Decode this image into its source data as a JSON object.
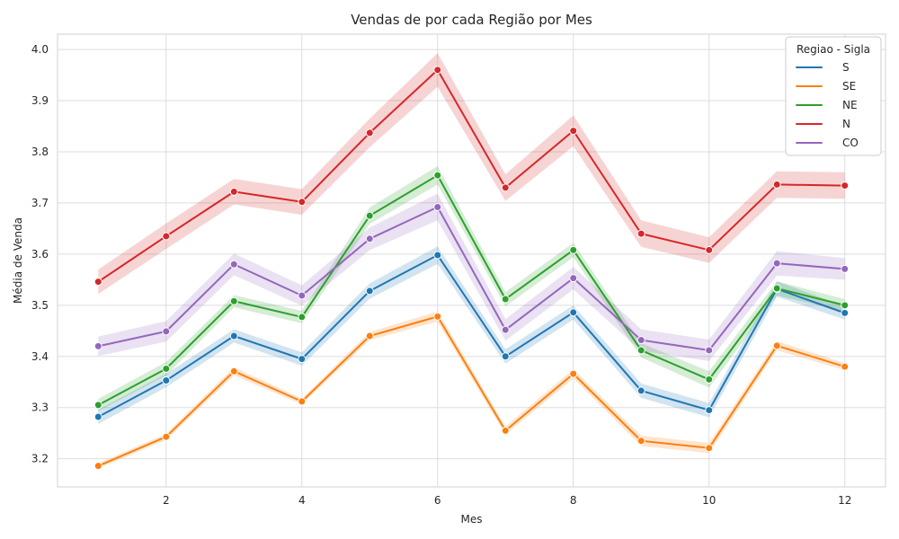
{
  "chart_data": {
    "type": "line",
    "title": "Vendas de por cada Região por Mes",
    "xlabel": "Mes",
    "ylabel": "Média de Venda",
    "x": [
      1,
      2,
      3,
      4,
      5,
      6,
      7,
      8,
      9,
      10,
      11,
      12
    ],
    "xticks": [
      2,
      4,
      6,
      8,
      10,
      12
    ],
    "xtick_labels": [
      "2",
      "4",
      "6",
      "8",
      "10",
      "12"
    ],
    "yticks": [
      3.2,
      3.3,
      3.4,
      3.5,
      3.6,
      3.7,
      3.8,
      3.9,
      4.0
    ],
    "ytick_labels": [
      "3.2",
      "3.3",
      "3.4",
      "3.5",
      "3.6",
      "3.7",
      "3.8",
      "3.9",
      "4.0"
    ],
    "xlim": [
      0.4,
      12.6
    ],
    "ylim": [
      3.145,
      4.03
    ],
    "grid": true,
    "legend": {
      "title": "Regiao - Sigla",
      "placement": "top-right"
    },
    "series": [
      {
        "name": "S",
        "color": "#1f77b4",
        "values": [
          3.282,
          3.353,
          3.44,
          3.395,
          3.528,
          3.598,
          3.4,
          3.486,
          3.333,
          3.295,
          3.532,
          3.485
        ],
        "ci_half": [
          0.014,
          0.013,
          0.013,
          0.013,
          0.015,
          0.017,
          0.014,
          0.014,
          0.014,
          0.014,
          0.015,
          0.013
        ]
      },
      {
        "name": "SE",
        "color": "#ff7f0e",
        "values": [
          3.186,
          3.243,
          3.371,
          3.312,
          3.44,
          3.478,
          3.255,
          3.366,
          3.235,
          3.221,
          3.421,
          3.38
        ],
        "ci_half": [
          0.005,
          0.006,
          0.008,
          0.006,
          0.008,
          0.01,
          0.008,
          0.009,
          0.01,
          0.01,
          0.009,
          0.007
        ]
      },
      {
        "name": "NE",
        "color": "#2ca02c",
        "values": [
          3.305,
          3.376,
          3.508,
          3.477,
          3.675,
          3.754,
          3.512,
          3.608,
          3.412,
          3.355,
          3.533,
          3.5
        ],
        "ci_half": [
          0.012,
          0.013,
          0.012,
          0.012,
          0.016,
          0.018,
          0.014,
          0.014,
          0.014,
          0.016,
          0.014,
          0.012
        ]
      },
      {
        "name": "N",
        "color": "#d62728",
        "values": [
          3.546,
          3.635,
          3.722,
          3.702,
          3.837,
          3.96,
          3.73,
          3.841,
          3.64,
          3.608,
          3.736,
          3.734
        ],
        "ci_half": [
          0.024,
          0.025,
          0.025,
          0.025,
          0.028,
          0.033,
          0.026,
          0.03,
          0.026,
          0.025,
          0.026,
          0.026
        ]
      },
      {
        "name": "CO",
        "color": "#9467bd",
        "values": [
          3.42,
          3.449,
          3.58,
          3.519,
          3.63,
          3.692,
          3.452,
          3.553,
          3.432,
          3.412,
          3.582,
          3.571
        ],
        "ci_half": [
          0.019,
          0.02,
          0.021,
          0.02,
          0.022,
          0.026,
          0.021,
          0.022,
          0.021,
          0.021,
          0.024,
          0.021
        ]
      }
    ]
  }
}
